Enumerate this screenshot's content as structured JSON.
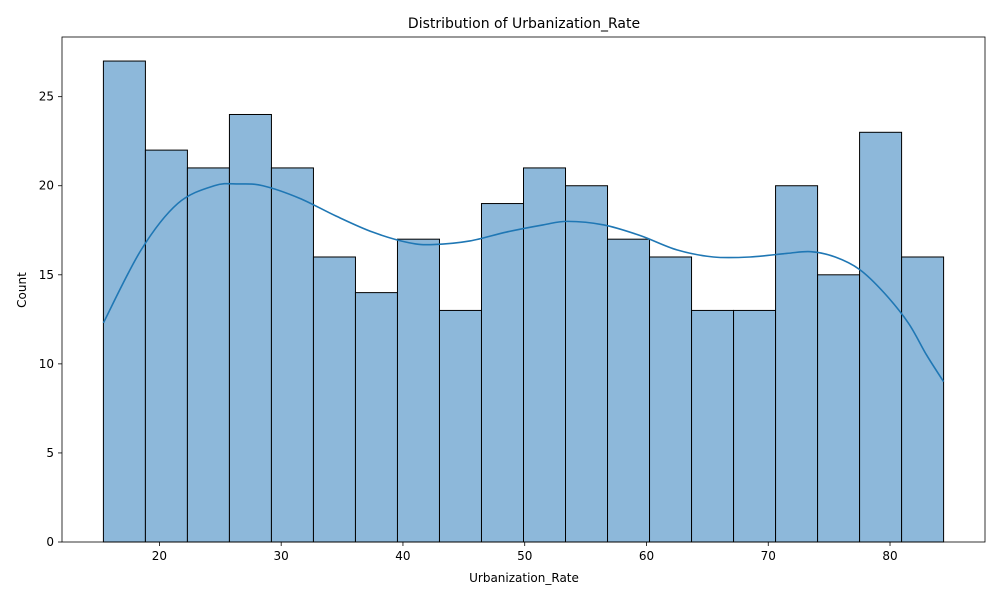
{
  "chart_data": {
    "type": "bar",
    "title": "Distribution of Urbanization_Rate",
    "xlabel": "Urbanization_Rate",
    "ylabel": "Count",
    "bin_edges": [
      15.4,
      18.85,
      22.3,
      25.75,
      29.2,
      32.65,
      36.1,
      39.55,
      43.0,
      46.45,
      49.9,
      53.35,
      56.8,
      60.25,
      63.7,
      67.15,
      70.6,
      74.05,
      77.5,
      80.95,
      84.4
    ],
    "values": [
      27,
      22,
      21,
      24,
      21,
      16,
      14,
      17,
      13,
      19,
      21,
      20,
      17,
      16,
      13,
      13,
      20,
      15,
      23,
      16
    ],
    "kde": {
      "x": [
        15.4,
        18.5,
        21.5,
        24.5,
        26.5,
        28.5,
        31.5,
        34.5,
        37.5,
        40.5,
        42.5,
        45.5,
        48.5,
        51.5,
        53.5,
        56.5,
        59.5,
        62.5,
        65.5,
        68.5,
        71.5,
        73.5,
        75.5,
        77.5,
        79.5,
        81.5,
        83.0,
        84.4
      ],
      "y": [
        12.3,
        16.4,
        19.0,
        20.0,
        20.1,
        20.0,
        19.3,
        18.3,
        17.4,
        16.8,
        16.7,
        16.9,
        17.4,
        17.8,
        18.0,
        17.8,
        17.2,
        16.4,
        16.0,
        16.0,
        16.2,
        16.3,
        16.0,
        15.3,
        14.0,
        12.3,
        10.5,
        9.0
      ]
    },
    "xlim": [
      12.0,
      87.8
    ],
    "ylim": [
      0,
      28.35
    ],
    "x_ticks": [
      20,
      30,
      40,
      50,
      60,
      70,
      80
    ],
    "y_ticks": [
      0,
      5,
      10,
      15,
      20,
      25
    ],
    "bar_color": "#8db8da",
    "bar_edge": "#000000",
    "line_color": "#1f77b4",
    "grid": false
  }
}
